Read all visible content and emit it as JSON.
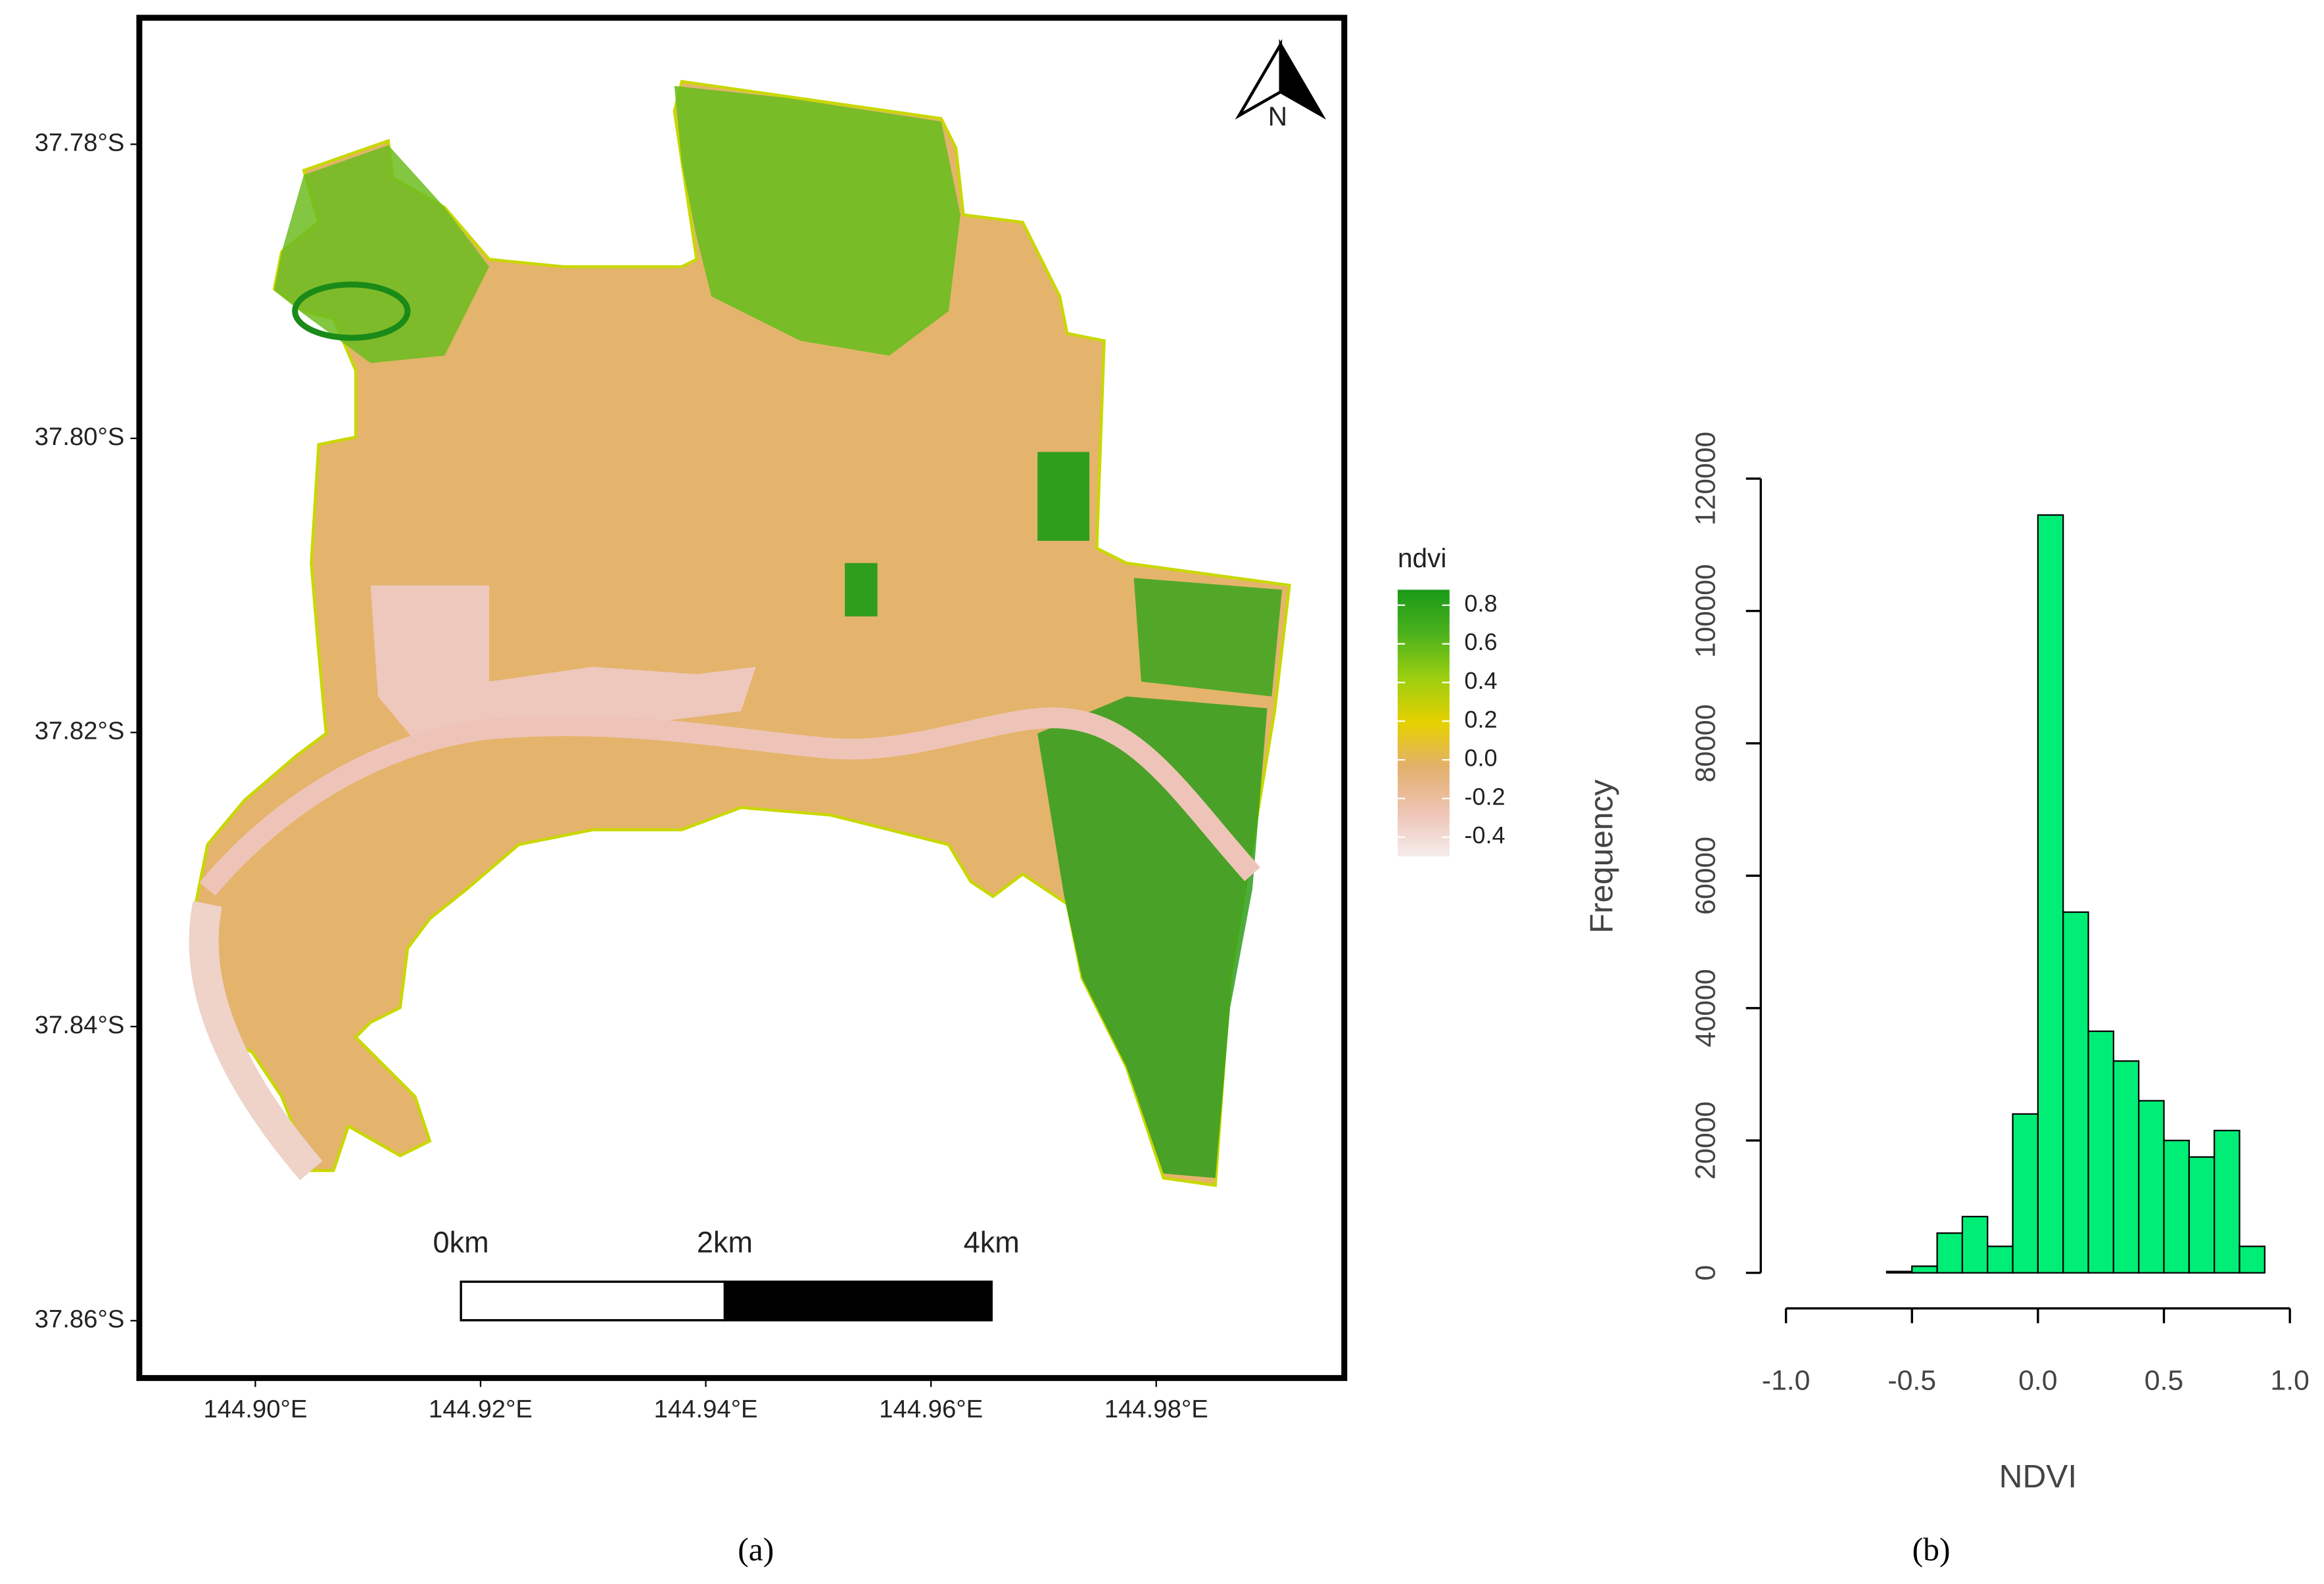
{
  "chart_data": [
    {
      "type": "map",
      "xlim": [
        144.8897,
        144.9967
      ],
      "ylim": [
        -37.7714,
        -37.8639
      ],
      "xticks": [
        {
          "value": 144.9,
          "label": "144.90°E"
        },
        {
          "value": 144.92,
          "label": "144.92°E"
        },
        {
          "value": 144.94,
          "label": "144.94°E"
        },
        {
          "value": 144.96,
          "label": "144.96°E"
        },
        {
          "value": 144.98,
          "label": "144.98°E"
        }
      ],
      "yticks": [
        {
          "value": -37.78,
          "label": "37.78°S"
        },
        {
          "value": -37.8,
          "label": "37.80°S"
        },
        {
          "value": -37.82,
          "label": "37.82°S"
        },
        {
          "value": -37.84,
          "label": "37.84°S"
        },
        {
          "value": -37.86,
          "label": "37.86°S"
        }
      ],
      "legend": {
        "title": "ndvi",
        "lim": [
          -0.5,
          0.88
        ],
        "colors": [
          "#f5ecec",
          "#eec4b4",
          "#e3b06e",
          "#e6d000",
          "#9ecf10",
          "#4cb21c",
          "#1a9a18"
        ],
        "ticks": [
          0.8,
          0.6,
          0.4,
          0.2,
          {
            "value": 0.0,
            "label": "0.0"
          },
          -0.2,
          -0.4
        ]
      },
      "scale_bar": [
        "0km",
        "2km",
        "4km"
      ],
      "north": "N",
      "caption": "(a)"
    },
    {
      "type": "histogram",
      "bins": [
        -0.6,
        -0.5,
        -0.4,
        -0.3,
        -0.2,
        -0.1,
        0.0,
        0.1,
        0.2,
        0.3,
        0.4,
        0.5,
        0.6,
        0.7,
        0.8,
        0.9
      ],
      "counts": [
        200,
        1000,
        6000,
        8500,
        4000,
        24000,
        114500,
        54500,
        36500,
        32000,
        26000,
        20000,
        17500,
        21500,
        4000
      ],
      "color": "#00ee76",
      "xlabel": "NDVI",
      "ylabel": "Frequency",
      "xlim": [
        -1,
        1
      ],
      "ylim": [
        0,
        120000
      ],
      "xticks": [
        {
          "value": -1.0,
          "label": "-1.0"
        },
        -0.5,
        {
          "value": 0.0,
          "label": "0.0"
        },
        0.5,
        {
          "value": 1.0,
          "label": "1.0"
        }
      ],
      "yticks": [
        0,
        20000,
        40000,
        60000,
        80000,
        100000,
        120000
      ],
      "caption": "(b)"
    }
  ]
}
